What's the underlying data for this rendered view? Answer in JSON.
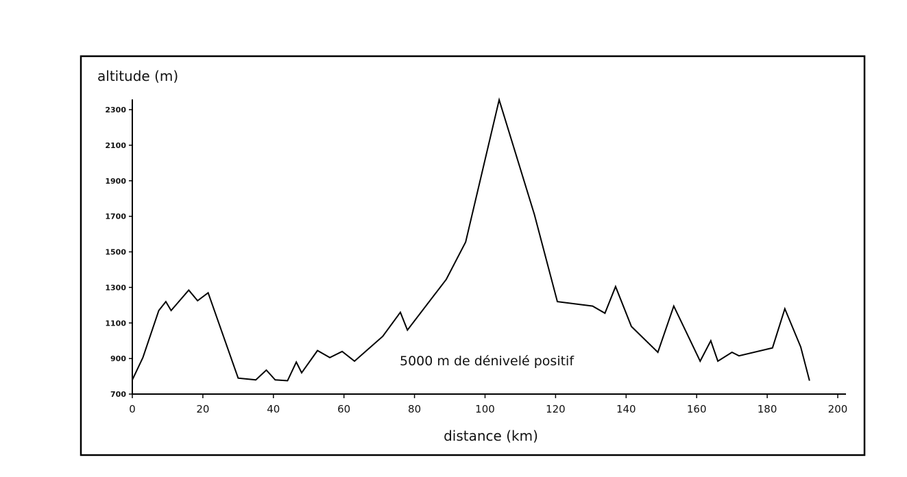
{
  "chart_data": {
    "type": "line",
    "title": "",
    "xlabel": "distance (km)",
    "ylabel": "altitude (m)",
    "xlim": [
      0,
      200
    ],
    "ylim": [
      700,
      2400
    ],
    "xticks": [
      0,
      20,
      40,
      60,
      80,
      100,
      120,
      140,
      160,
      180,
      200
    ],
    "yticks": [
      700,
      900,
      1100,
      1300,
      1500,
      1700,
      1900,
      2100,
      2300
    ],
    "grid": false,
    "annotation": "5000 m de dénivelé positif",
    "series": [
      {
        "x": [
          0,
          3,
          7.5,
          9.5,
          11,
          16,
          18.5,
          21.5,
          30,
          35,
          38,
          40.5,
          44,
          46.5,
          48,
          52.5,
          56,
          59.5,
          63,
          71,
          76,
          78,
          89,
          94.5,
          104,
          114,
          120.5,
          130.5,
          134,
          137,
          141.5,
          149,
          153.5,
          161,
          164,
          166,
          170,
          172,
          181.5,
          185,
          189.5,
          192
        ],
        "y": [
          780,
          905,
          1170,
          1220,
          1170,
          1285,
          1225,
          1270,
          790,
          780,
          835,
          780,
          775,
          880,
          820,
          945,
          905,
          940,
          885,
          1025,
          1160,
          1060,
          1345,
          1555,
          2355,
          1710,
          1220,
          1195,
          1155,
          1305,
          1080,
          935,
          1195,
          885,
          1000,
          885,
          935,
          915,
          960,
          1180,
          965,
          775
        ]
      }
    ]
  }
}
